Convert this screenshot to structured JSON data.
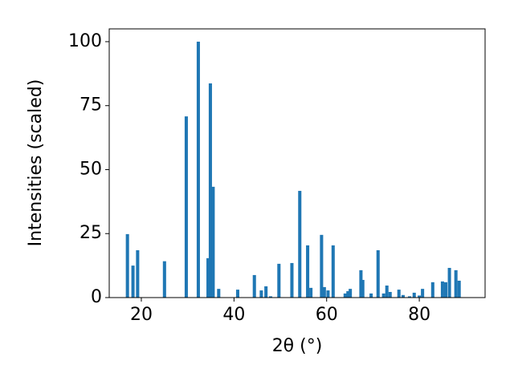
{
  "chart_data": {
    "type": "bar",
    "xlabel": "2θ (°)",
    "ylabel": "Intensities (scaled)",
    "color": "#1f77b4",
    "x": [
      17.0,
      18.2,
      19.2,
      25.0,
      29.7,
      32.3,
      34.4,
      34.9,
      35.5,
      36.7,
      40.8,
      44.4,
      45.9,
      46.9,
      47.9,
      49.7,
      52.5,
      54.2,
      55.9,
      56.6,
      58.9,
      59.5,
      60.3,
      61.4,
      64.0,
      64.6,
      65.1,
      67.4,
      67.8,
      69.6,
      71.1,
      72.3,
      73.0,
      73.7,
      75.6,
      76.5,
      77.9,
      78.9,
      80.0,
      80.7,
      82.9,
      85.0,
      85.7,
      86.5,
      87.9,
      88.6
    ],
    "values": [
      24.8,
      12.5,
      18.5,
      14.2,
      70.8,
      100,
      15.4,
      83.7,
      43.3,
      3.4,
      3.1,
      8.8,
      2.8,
      4.4,
      0.5,
      13.2,
      13.5,
      41.7,
      20.4,
      3.8,
      24.5,
      4.1,
      2.8,
      20.4,
      1.6,
      2.5,
      3.4,
      10.7,
      6.9,
      1.6,
      18.5,
      1.6,
      4.7,
      2.2,
      3.1,
      1.0,
      0.5,
      1.9,
      0.8,
      3.4,
      6.0,
      6.3,
      6.0,
      11.6,
      10.7,
      6.6
    ],
    "xlim": [
      13.07,
      94.2
    ],
    "ylim": [
      0,
      105
    ],
    "xticks": [
      20,
      40,
      60,
      80
    ],
    "yticks": [
      0,
      25,
      50,
      75,
      100
    ],
    "grid": false
  }
}
